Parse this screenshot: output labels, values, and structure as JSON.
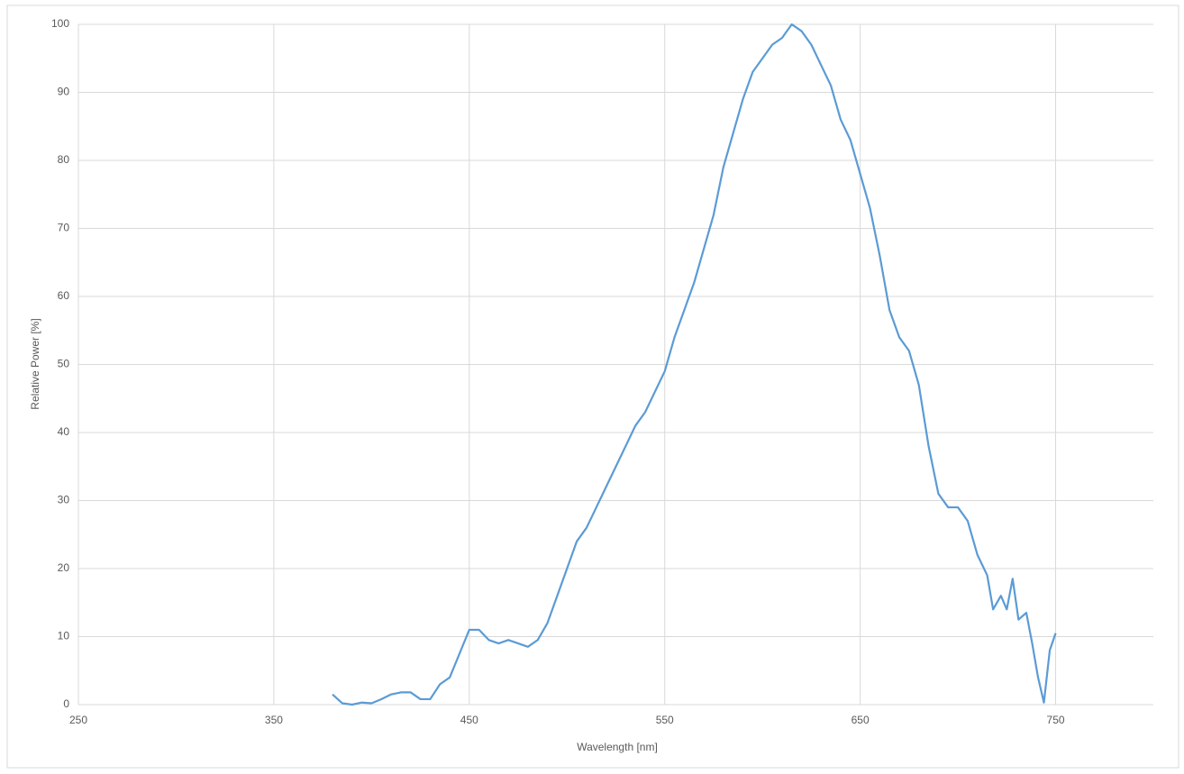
{
  "chart_data": {
    "type": "line",
    "x_label": "Wavelength [nm]",
    "y_label": "Relative Power [%]",
    "x": [
      380,
      385,
      390,
      395,
      400,
      405,
      410,
      415,
      420,
      425,
      430,
      435,
      440,
      445,
      450,
      455,
      460,
      465,
      470,
      475,
      480,
      485,
      490,
      495,
      500,
      505,
      510,
      515,
      520,
      525,
      530,
      535,
      540,
      545,
      550,
      555,
      560,
      565,
      570,
      575,
      580,
      585,
      590,
      595,
      600,
      605,
      610,
      615,
      620,
      625,
      630,
      635,
      640,
      645,
      650,
      655,
      660,
      665,
      670,
      675,
      680,
      685,
      690,
      695,
      700,
      705,
      710,
      715,
      718,
      722,
      725,
      728,
      731,
      735,
      738,
      741,
      744,
      747,
      750
    ],
    "series": [
      {
        "name": "Relative Power",
        "color": "#5b9bd5",
        "values": [
          1.5,
          0.2,
          0,
          0.3,
          0.2,
          0.8,
          1.5,
          1.8,
          1.8,
          0.8,
          0.8,
          3,
          4,
          7.5,
          11,
          11,
          9.5,
          9,
          9.5,
          9,
          8.5,
          9.5,
          12,
          16,
          20,
          24,
          26,
          29,
          32,
          35,
          38,
          41,
          43,
          46,
          49,
          54,
          58,
          62,
          67,
          72,
          79,
          84,
          89,
          93,
          95,
          97,
          98,
          100,
          99,
          97,
          94,
          91,
          86,
          83,
          78,
          73,
          66,
          58,
          54,
          52,
          47,
          38,
          31,
          29,
          29,
          27,
          22,
          19,
          14,
          16,
          14,
          18.5,
          12.5,
          13.5,
          9,
          4,
          0.3,
          8,
          10.5
        ]
      }
    ],
    "xlim": [
      250,
      800
    ],
    "xticks": [
      250,
      350,
      450,
      550,
      650,
      750
    ],
    "ylim": [
      0,
      100
    ],
    "yticks": [
      0,
      10,
      20,
      30,
      40,
      50,
      60,
      70,
      80,
      90,
      100
    ],
    "grid": true
  }
}
